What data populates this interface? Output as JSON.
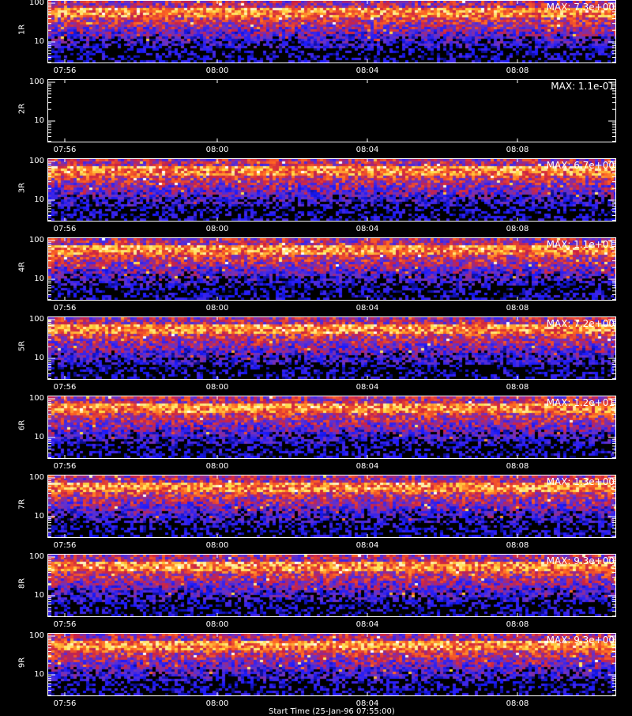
{
  "chart_data": {
    "type": "heatmap",
    "colormap": [
      "#000000",
      "#1a1aff",
      "#6633cc",
      "#cc2244",
      "#ff6622",
      "#ffdd44",
      "#ffffff"
    ],
    "y_scale": "log",
    "ylim": [
      3,
      110
    ],
    "y_ticks": [
      "100",
      "10"
    ],
    "x_ticks": [
      "07:56",
      "08:00",
      "08:04",
      "08:08"
    ],
    "xlabel": "Start Time (25-Jan-96 07:55:00)",
    "panels": [
      {
        "ylabel": "1R",
        "max_label": "MAX: 7.3e+00",
        "empty": false
      },
      {
        "ylabel": "2R",
        "max_label": "MAX: 1.1e-01",
        "empty": true
      },
      {
        "ylabel": "3R",
        "max_label": "MAX: 6.7e+00",
        "empty": false
      },
      {
        "ylabel": "4R",
        "max_label": "MAX: 1.1e+01",
        "empty": false
      },
      {
        "ylabel": "5R",
        "max_label": "MAX: 7.2e+00",
        "empty": false
      },
      {
        "ylabel": "6R",
        "max_label": "MAX: 1.2e+01",
        "empty": false
      },
      {
        "ylabel": "7R",
        "max_label": "MAX: 1.3e+00",
        "empty": false
      },
      {
        "ylabel": "8R",
        "max_label": "MAX: 9.3e+00",
        "empty": false
      },
      {
        "ylabel": "9R",
        "max_label": "MAX: 9.3e+00",
        "empty": false
      }
    ]
  }
}
